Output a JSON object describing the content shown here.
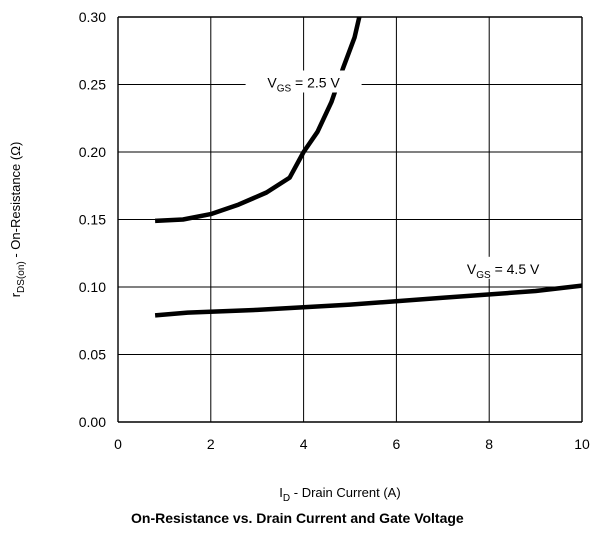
{
  "chart_data": {
    "type": "line",
    "title": "On-Resistance vs. Drain Current and Gate Voltage",
    "xlabel": {
      "main": "I",
      "sub": "D",
      "rest": "  -  Drain Current (A)"
    },
    "ylabel": {
      "main": "r",
      "sub": "DS(on)",
      "rest": "  -  On-Resistance (Ω)"
    },
    "xlim": [
      0,
      10
    ],
    "ylim": [
      0,
      0.3
    ],
    "x_ticks": [
      "0",
      "2",
      "4",
      "6",
      "8",
      "10"
    ],
    "y_ticks": [
      "0.00",
      "0.05",
      "0.10",
      "0.15",
      "0.20",
      "0.25",
      "0.30"
    ],
    "grid": true,
    "series": [
      {
        "name": {
          "main": "V",
          "sub": "GS",
          "rest": " = 2.5 V"
        },
        "label_at": [
          4.0,
          0.25
        ],
        "points": [
          [
            0.8,
            0.149
          ],
          [
            1.4,
            0.15
          ],
          [
            2.0,
            0.154
          ],
          [
            2.6,
            0.161
          ],
          [
            3.2,
            0.17
          ],
          [
            3.7,
            0.181
          ],
          [
            4.0,
            0.2
          ],
          [
            4.3,
            0.215
          ],
          [
            4.6,
            0.237
          ],
          [
            4.85,
            0.262
          ],
          [
            5.1,
            0.285
          ],
          [
            5.2,
            0.3
          ]
        ]
      },
      {
        "name": {
          "main": "V",
          "sub": "GS",
          "rest": " = 4.5 V"
        },
        "label_at": [
          8.3,
          0.112
        ],
        "points": [
          [
            0.8,
            0.079
          ],
          [
            1.5,
            0.081
          ],
          [
            3.0,
            0.083
          ],
          [
            5.0,
            0.087
          ],
          [
            7.0,
            0.092
          ],
          [
            9.0,
            0.097
          ],
          [
            10.0,
            0.101
          ]
        ]
      }
    ]
  }
}
